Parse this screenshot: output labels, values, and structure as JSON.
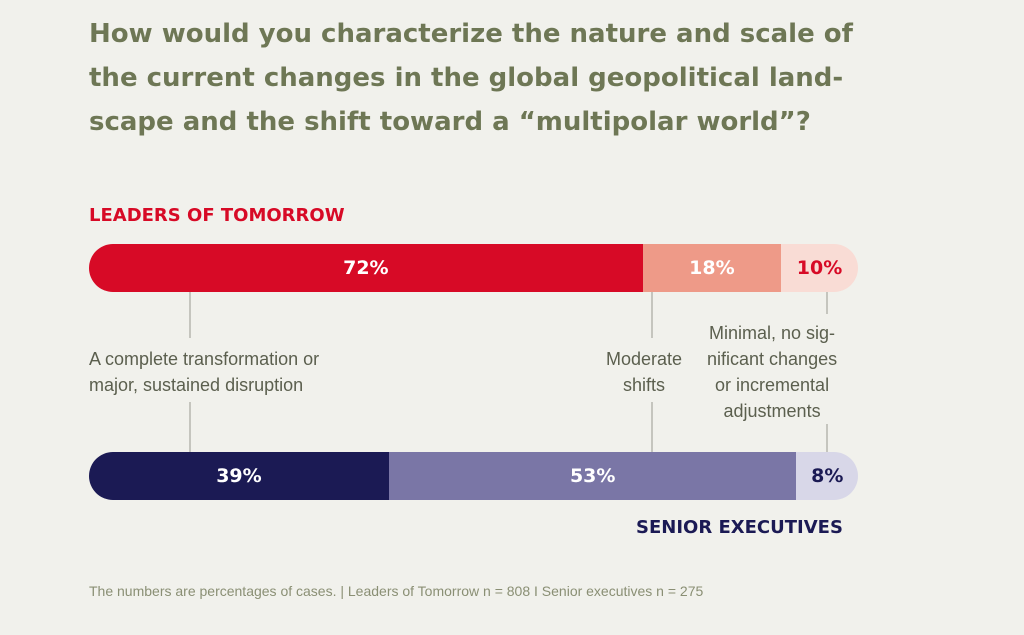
{
  "title_lines": [
    "How would you characterize the nature and scale of",
    "the current changes in the global geopolitical land-",
    "scape and the shift toward a “multipolar world”?"
  ],
  "footnote": "The numbers are percentages of cases. | Leaders of Tomorrow n = 808 I Senior executives n = 275",
  "chart_data": {
    "type": "bar",
    "orientation": "horizontal-stacked-100",
    "title": "How would you characterize the nature and scale of the current changes in the global geopolitical land- scape and the shift toward a “multipolar world”?",
    "categories": [
      {
        "lines": [
          "A complete transformation or",
          "major, sustained disruption"
        ]
      },
      {
        "lines": [
          "Moderate",
          "shifts"
        ]
      },
      {
        "lines": [
          "Minimal, no sig-",
          "nificant changes",
          "or incremental",
          "adjustments"
        ]
      }
    ],
    "series": [
      {
        "name": "LEADERS OF TOMORROW",
        "label_color": "#d70a26",
        "values": [
          72,
          18,
          10
        ],
        "value_labels": [
          "72%",
          "18%",
          "10%"
        ],
        "colors": [
          "#d70a26",
          "#ee9a88",
          "#f9dcd5"
        ],
        "text_colors": [
          "#ffffff",
          "#ffffff",
          "#d70a26"
        ]
      },
      {
        "name": "SENIOR EXECUTIVES",
        "label_color": "#1b1a54",
        "values": [
          39,
          53,
          8
        ],
        "value_labels": [
          "39%",
          "53%",
          "8%"
        ],
        "colors": [
          "#1b1a54",
          "#7a76a6",
          "#d8d7e8"
        ],
        "text_colors": [
          "#ffffff",
          "#ffffff",
          "#1b1a54"
        ]
      }
    ]
  }
}
